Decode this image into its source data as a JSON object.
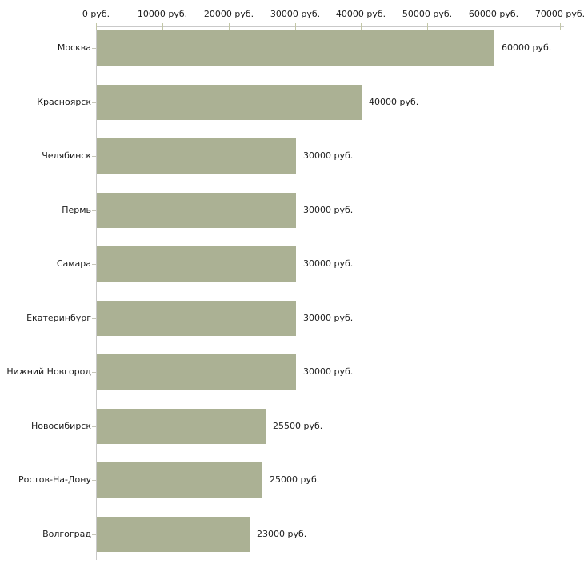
{
  "chart_data": {
    "type": "bar",
    "orientation": "horizontal",
    "title": "",
    "categories": [
      "Москва",
      "Красноярск",
      "Челябинск",
      "Пермь",
      "Самара",
      "Екатеринбург",
      "Нижний Новгород",
      "Новосибирск",
      "Ростов-На-Дону",
      "Волгоград"
    ],
    "values": [
      60000,
      40000,
      30000,
      30000,
      30000,
      30000,
      30000,
      25500,
      25000,
      23000
    ],
    "value_labels": [
      "60000 руб.",
      "40000 руб.",
      "30000 руб.",
      "30000 руб.",
      "30000 руб.",
      "30000 руб.",
      "30000 руб.",
      "25500 руб.",
      "25000 руб.",
      "23000 руб."
    ],
    "x_axis": {
      "min": 0,
      "max": 70000,
      "tick_step": 10000,
      "position": "top",
      "tick_labels": [
        "0 руб.",
        "10000 руб.",
        "20000 руб.",
        "30000 руб.",
        "40000 руб.",
        "50000 руб.",
        "60000 руб.",
        "70000 руб."
      ]
    },
    "grid": false,
    "legend": false,
    "colors": {
      "bar": "#abb194",
      "axis_line": "#c9c9c9",
      "x_tick_mark": "#c2c6a6",
      "row_tick_mark": "#c6c6ba",
      "text": "#1c1c1c",
      "background": "#ffffff"
    }
  }
}
